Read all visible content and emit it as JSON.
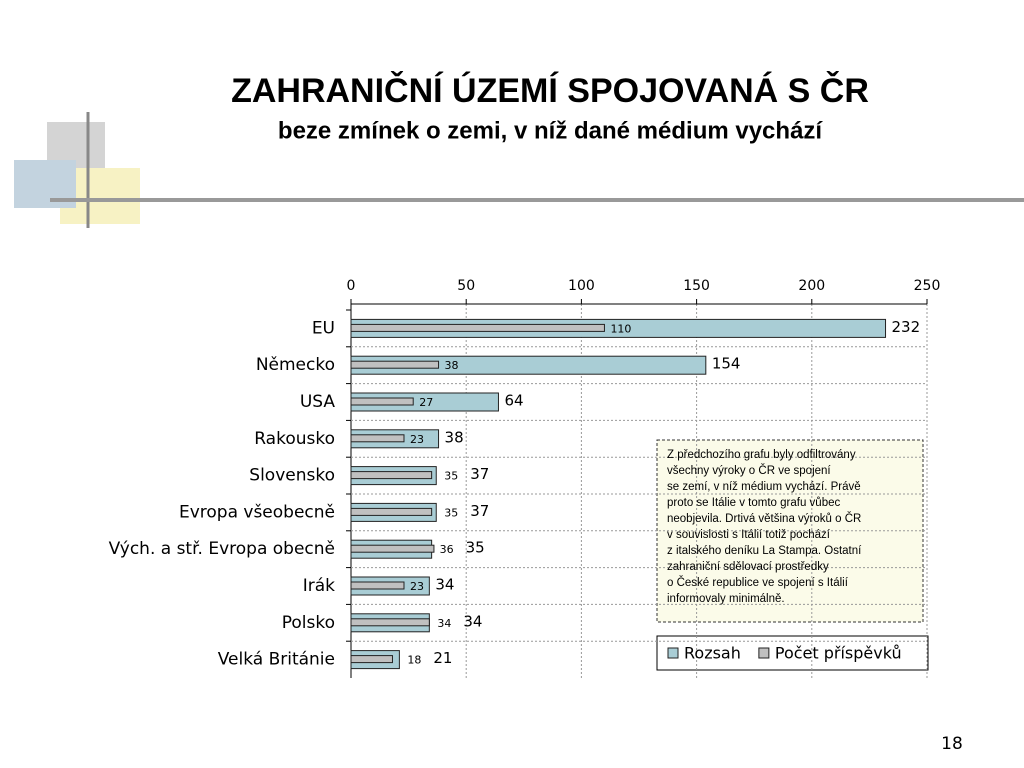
{
  "chart_data": {
    "type": "bar",
    "orientation": "horizontal",
    "title": "ZAHRANIČNÍ ÚZEMÍ SPOJOVANÁ S ČR",
    "subtitle": "beze zmínek o zemi, v níž dané médium vychází",
    "categories": [
      "EU",
      "Německo",
      "USA",
      "Rakousko",
      "Slovensko",
      "Evropa všeobecně",
      "Vých. a stř. Evropa obecně",
      "Irák",
      "Polsko",
      "Velká Británie"
    ],
    "series": [
      {
        "name": "Rozsah",
        "color": "#a9cdd5",
        "values": [
          232,
          154,
          64,
          38,
          37,
          37,
          35,
          34,
          34,
          21
        ]
      },
      {
        "name": "Počet příspěvků",
        "color": "#c0c0c0",
        "values": [
          110,
          38,
          27,
          23,
          35,
          35,
          36,
          23,
          34,
          18
        ]
      }
    ],
    "xlim": [
      0,
      250
    ],
    "xticks": [
      0,
      50,
      100,
      150,
      200,
      250
    ],
    "grid": true,
    "legend": "bottom-right",
    "annotation": [
      "Z předchozího grafu byly odfiltrovány",
      "všechny výroky o ČR ve spojení",
      "se zemí, v níž médium vychází. Právě",
      "proto se Itálie v tomto grafu vůbec",
      "neobjevila. Drtivá většina výroků o ČR",
      "v souvislosti s Itálií totiž pochází",
      "z italského deníku La Stampa. Ostatní",
      "zahraniční sdělovací prostředky",
      "o České republice ve spojení s Itálií",
      "informovaly minimálně."
    ],
    "page_number": "18"
  }
}
